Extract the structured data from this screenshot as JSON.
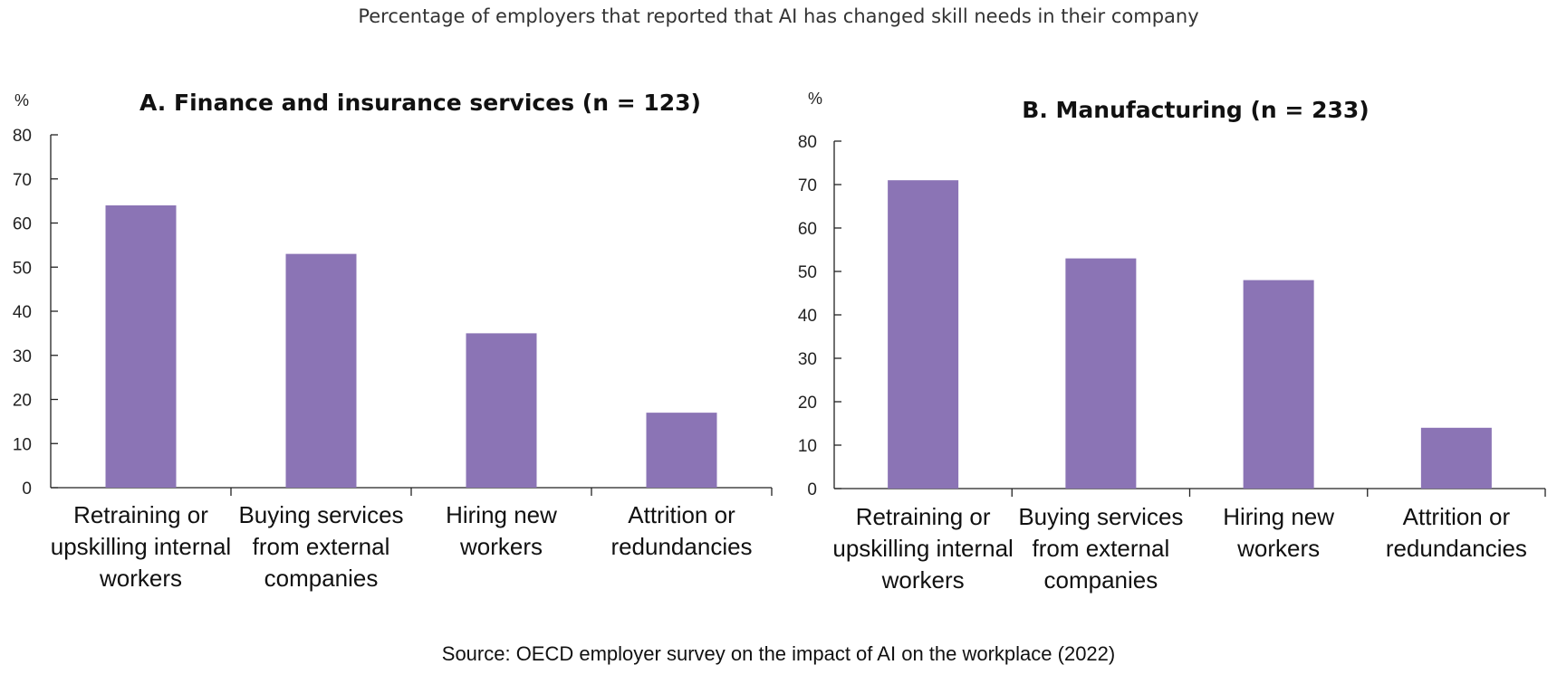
{
  "title": "Percentage of employers that reported that AI has changed skill needs in their company",
  "source": "Source: OECD employer survey on the impact of AI on the workplace (2022)",
  "colors": {
    "bar": "#8B74B5"
  },
  "chart_data": [
    {
      "type": "bar",
      "title": "A. Finance and insurance services (n = 123)",
      "ylabel": "%",
      "ylim": [
        0,
        80
      ],
      "yticks": [
        "0",
        "10",
        "20",
        "30",
        "40",
        "50",
        "60",
        "70",
        "80"
      ],
      "categories": [
        [
          "Retraining or",
          "upskilling internal",
          "workers"
        ],
        [
          "Buying services",
          "from external",
          "companies"
        ],
        [
          "Hiring new",
          "workers"
        ],
        [
          "Attrition or",
          "redundancies"
        ]
      ],
      "values": [
        64,
        53,
        35,
        17
      ],
      "grid": false
    },
    {
      "type": "bar",
      "title": "B. Manufacturing (n = 233)",
      "ylabel": "%",
      "ylim": [
        0,
        80
      ],
      "yticks": [
        "0",
        "10",
        "20",
        "30",
        "40",
        "50",
        "60",
        "70",
        "80"
      ],
      "categories": [
        [
          "Retraining or",
          "upskilling internal",
          "workers"
        ],
        [
          "Buying services",
          "from external",
          "companies"
        ],
        [
          "Hiring new",
          "workers"
        ],
        [
          "Attrition or",
          "redundancies"
        ]
      ],
      "values": [
        71,
        53,
        48,
        14
      ],
      "grid": false
    }
  ]
}
